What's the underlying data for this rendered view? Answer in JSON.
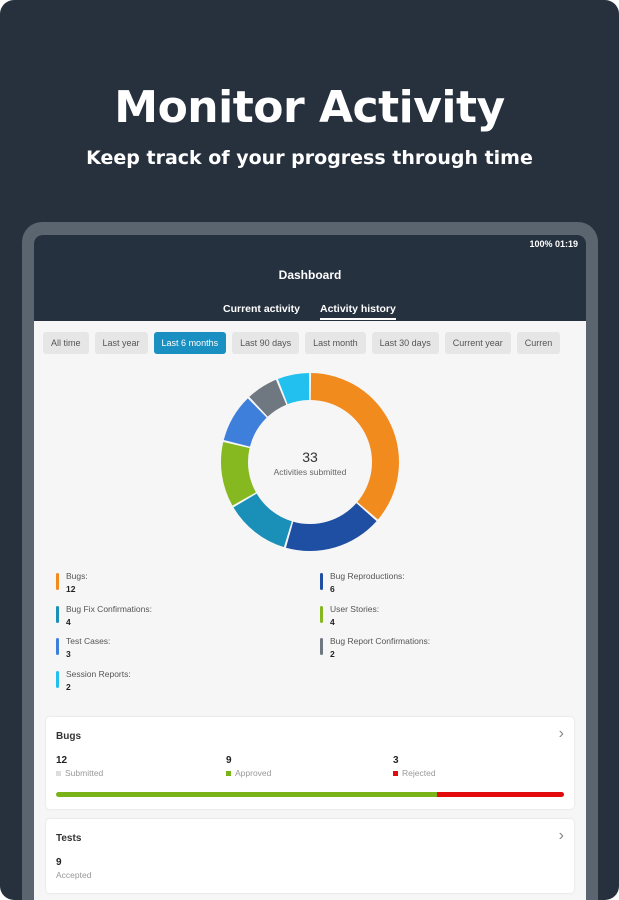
{
  "hero": {
    "title": "Monitor Activity",
    "subtitle": "Keep track of your progress through time"
  },
  "status_bar": {
    "text": "100% 01:19"
  },
  "header": {
    "title": "Dashboard",
    "tabs": [
      {
        "label": "Current activity",
        "active": false
      },
      {
        "label": "Activity history",
        "active": true
      }
    ]
  },
  "filters": [
    {
      "label": "All time"
    },
    {
      "label": "Last year"
    },
    {
      "label": "Last 6 months",
      "selected": true
    },
    {
      "label": "Last 90 days"
    },
    {
      "label": "Last month"
    },
    {
      "label": "Last 30 days"
    },
    {
      "label": "Current year"
    },
    {
      "label": "Curren"
    }
  ],
  "chart_data": {
    "type": "pie",
    "donut": true,
    "center_value": "33",
    "center_label": "Activities submitted",
    "slices": [
      {
        "name": "Bugs:",
        "value": 12,
        "color": "#f18b1d"
      },
      {
        "name": "Bug Reproductions:",
        "value": 6,
        "color": "#1f4fa3"
      },
      {
        "name": "Bug Fix Confirmations:",
        "value": 4,
        "color": "#1a8fb8"
      },
      {
        "name": "User Stories:",
        "value": 4,
        "color": "#86b81f"
      },
      {
        "name": "Test Cases:",
        "value": 3,
        "color": "#3f7fdc"
      },
      {
        "name": "Bug Report Confirmations:",
        "value": 2,
        "color": "#6f7780"
      },
      {
        "name": "Session Reports:",
        "value": 2,
        "color": "#22c0ee"
      }
    ]
  },
  "bugs_card": {
    "title": "Bugs",
    "stats": [
      {
        "value": "12",
        "label": "Submitted",
        "color": "#dddddd"
      },
      {
        "value": "9",
        "label": "Approved",
        "color": "#7ab317"
      },
      {
        "value": "3",
        "label": "Rejected",
        "color": "#e30b0b"
      }
    ],
    "approved_fraction": 0.75
  },
  "tests_card": {
    "title": "Tests",
    "stats": [
      {
        "value": "9",
        "label": "Accepted"
      }
    ]
  }
}
